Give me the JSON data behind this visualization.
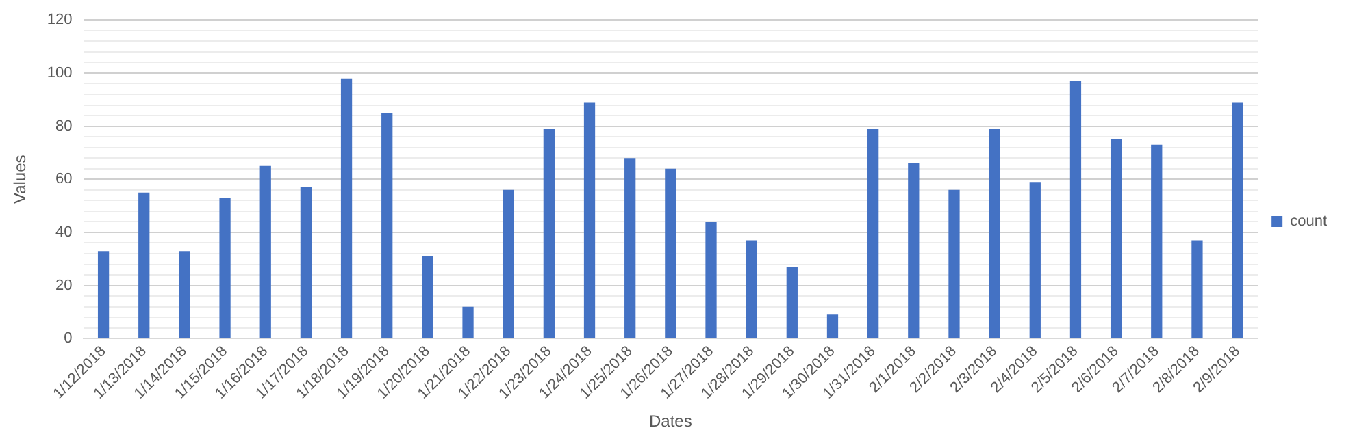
{
  "chart_data": {
    "type": "bar",
    "xlabel": "Dates",
    "ylabel": "Values",
    "categories": [
      "1/12/2018",
      "1/13/2018",
      "1/14/2018",
      "1/15/2018",
      "1/16/2018",
      "1/17/2018",
      "1/18/2018",
      "1/19/2018",
      "1/20/2018",
      "1/21/2018",
      "1/22/2018",
      "1/23/2018",
      "1/24/2018",
      "1/25/2018",
      "1/26/2018",
      "1/27/2018",
      "1/28/2018",
      "1/29/2018",
      "1/30/2018",
      "1/31/2018",
      "2/1/2018",
      "2/2/2018",
      "2/3/2018",
      "2/4/2018",
      "2/5/2018",
      "2/6/2018",
      "2/7/2018",
      "2/8/2018",
      "2/9/2018"
    ],
    "series": [
      {
        "name": "count",
        "color": "#4472c4",
        "values": [
          33,
          55,
          33,
          53,
          65,
          57,
          98,
          85,
          31,
          12,
          56,
          79,
          89,
          68,
          64,
          44,
          37,
          27,
          9,
          79,
          66,
          56,
          79,
          59,
          97,
          75,
          73,
          37,
          89
        ]
      }
    ],
    "ylim": [
      0,
      120
    ],
    "yticks": [
      0,
      {
        "value": 4,
        "label": null
      },
      {
        "value": 8,
        "label": null
      },
      {
        "value": 12,
        "label": null
      },
      {
        "value": 16,
        "label": null
      },
      20,
      {
        "value": 24,
        "label": null
      },
      {
        "value": 28,
        "label": null
      },
      {
        "value": 32,
        "label": null
      },
      {
        "value": 36,
        "label": null
      },
      40,
      {
        "value": 44,
        "label": null
      },
      {
        "value": 48,
        "label": null
      },
      {
        "value": 52,
        "label": null
      },
      {
        "value": 56,
        "label": null
      },
      60,
      {
        "value": 64,
        "label": null
      },
      {
        "value": 68,
        "label": null
      },
      {
        "value": 72,
        "label": null
      },
      {
        "value": 76,
        "label": null
      },
      80,
      {
        "value": 84,
        "label": null
      },
      {
        "value": 88,
        "label": null
      },
      {
        "value": 92,
        "label": null
      },
      {
        "value": 96,
        "label": null
      },
      100,
      {
        "value": 104,
        "label": null
      },
      {
        "value": 108,
        "label": null
      },
      {
        "value": 112,
        "label": null
      },
      {
        "value": 116,
        "label": null
      },
      120
    ],
    "grid": "y",
    "legend": "right"
  }
}
